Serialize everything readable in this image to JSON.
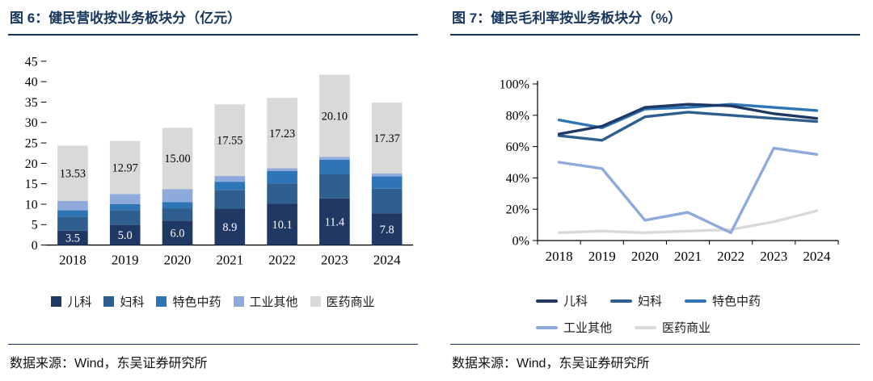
{
  "accent": "#17375E",
  "figure6": {
    "title": "图 6：健民营收按业务板块分（亿元）",
    "source": "数据来源：Wind，东吴证券研究所"
  },
  "figure7": {
    "title": "图 7：健民毛利率按业务板块分（%）",
    "source": "数据来源：Wind，东吴证券研究所"
  },
  "chart_data": [
    {
      "type": "bar",
      "stacked": true,
      "title": "健民营收按业务板块分（亿元）",
      "categories": [
        "2018",
        "2019",
        "2020",
        "2021",
        "2022",
        "2023",
        "2024"
      ],
      "series": [
        {
          "name": "儿科",
          "color": "#1F3864",
          "values": [
            3.5,
            5.0,
            6.0,
            8.9,
            10.1,
            11.4,
            7.8
          ],
          "labels": [
            "3.5",
            "5.0",
            "6.0",
            "8.9",
            "10.1",
            "11.4",
            "7.8"
          ],
          "label_color": "#FFFFFF"
        },
        {
          "name": "妇科",
          "color": "#2F5F8F",
          "values": [
            3.5,
            3.5,
            3.0,
            4.6,
            5.0,
            6.0,
            6.0
          ]
        },
        {
          "name": "特色中药",
          "color": "#2E75B6",
          "values": [
            1.5,
            1.5,
            1.5,
            2.0,
            3.0,
            3.5,
            3.0
          ]
        },
        {
          "name": "工业其他",
          "color": "#8EAADB",
          "values": [
            2.3,
            2.5,
            3.2,
            1.4,
            0.7,
            0.7,
            0.7
          ]
        },
        {
          "name": "医药商业",
          "color": "#D9D9D9",
          "values": [
            13.53,
            12.97,
            15.0,
            17.55,
            17.23,
            20.1,
            17.37
          ],
          "labels": [
            "13.53",
            "12.97",
            "15.00",
            "17.55",
            "17.23",
            "20.10",
            "17.37"
          ],
          "label_color": "#000000"
        }
      ],
      "ylim": [
        0,
        45
      ],
      "ytick_step": 5,
      "legend_position": "bottom",
      "grid": false
    },
    {
      "type": "line",
      "title": "健民毛利率按业务板块分（%）",
      "x": [
        "2018",
        "2019",
        "2020",
        "2021",
        "2022",
        "2023",
        "2024"
      ],
      "series": [
        {
          "name": "儿科",
          "color": "#1F3864",
          "values": [
            68,
            73,
            85,
            87,
            86,
            81,
            78
          ]
        },
        {
          "name": "妇科",
          "color": "#2F5F8F",
          "values": [
            67,
            64,
            79,
            82,
            80,
            78,
            76
          ]
        },
        {
          "name": "特色中药",
          "color": "#2E75B6",
          "values": [
            77,
            72,
            84,
            85,
            87,
            85,
            83
          ]
        },
        {
          "name": "工业其他",
          "color": "#8EAADB",
          "values": [
            50,
            46,
            13,
            18,
            5,
            59,
            55
          ]
        },
        {
          "name": "医药商业",
          "color": "#D9D9D9",
          "values": [
            5,
            6,
            5,
            6,
            7,
            12,
            19
          ]
        }
      ],
      "ylim": [
        0,
        100
      ],
      "ytick_step": 20,
      "ytick_suffix": "%",
      "legend_position": "bottom",
      "grid": false
    }
  ]
}
